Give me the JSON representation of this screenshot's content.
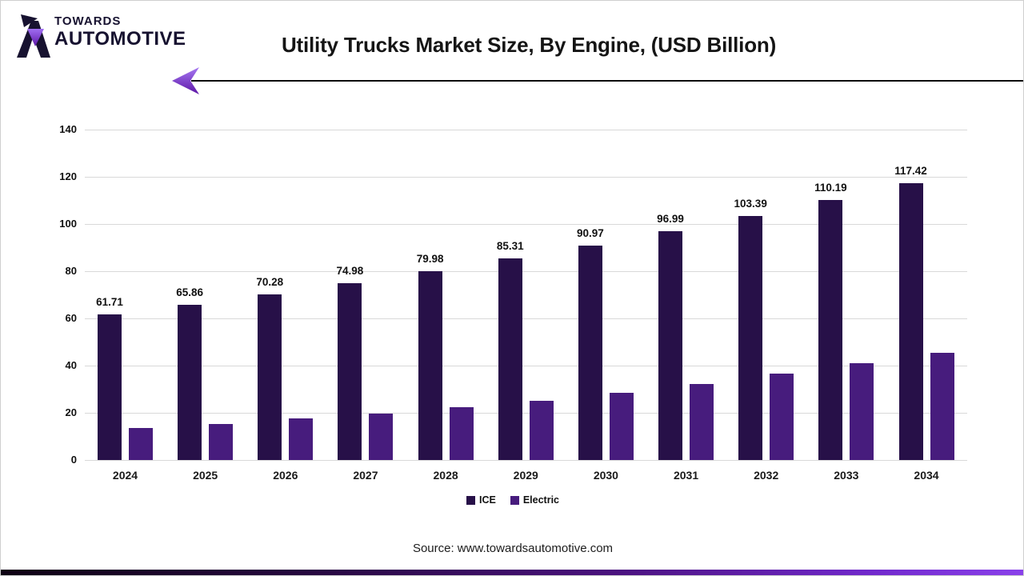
{
  "brand": {
    "name_line1": "TOWARDS",
    "name_line2": "AUTOMOTIVE",
    "mark_dark_color": "#171230",
    "mark_purple_top": "#a06ef2",
    "mark_purple_bottom": "#5c15a6"
  },
  "header": {
    "title": "Utility Trucks Market Size, By Engine, (USD Billion)"
  },
  "footer": {
    "source": "Source: www.towardsautomotive.com",
    "bar_gradient": [
      "#0e0213",
      "#4a127e",
      "#8a41ea"
    ]
  },
  "chart_data": {
    "type": "bar",
    "title": "Utility Trucks Market Size, By Engine, (USD Billion)",
    "categories": [
      "2024",
      "2025",
      "2026",
      "2027",
      "2028",
      "2029",
      "2030",
      "2031",
      "2032",
      "2033",
      "2034"
    ],
    "series": [
      {
        "name": "ICE",
        "color": "#271048",
        "data_labels": true,
        "values": [
          61.71,
          65.86,
          70.28,
          74.98,
          79.98,
          85.31,
          90.97,
          96.99,
          103.39,
          110.19,
          117.42
        ]
      },
      {
        "name": "Electric",
        "color": "#471c7d",
        "data_labels": false,
        "estimated": true,
        "values": [
          13.4,
          15.3,
          17.5,
          19.8,
          22.4,
          25.2,
          28.5,
          32.3,
          36.5,
          40.9,
          45.5
        ]
      }
    ],
    "ylim": [
      0,
      140
    ],
    "yticks": [
      0,
      20,
      40,
      60,
      80,
      100,
      120,
      140
    ],
    "grid": true,
    "legend_position": "bottom-center"
  }
}
